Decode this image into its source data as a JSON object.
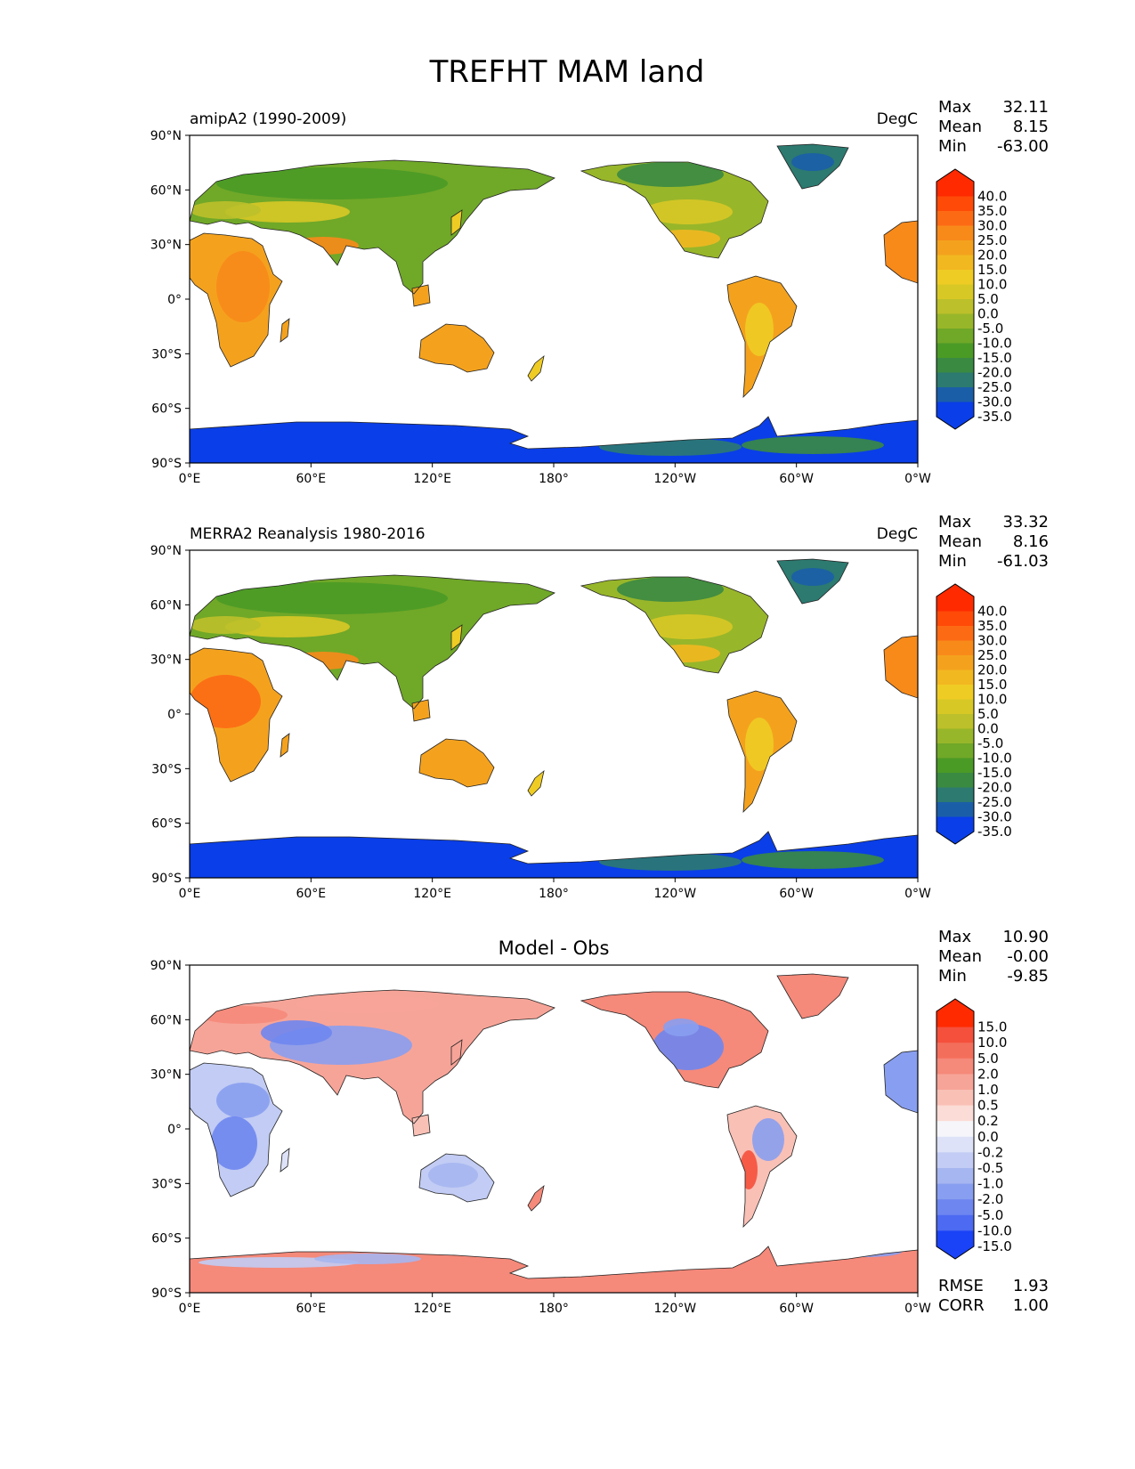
{
  "title": "TREFHT MAM land",
  "lat_ticks": [
    "90°N",
    "60°N",
    "30°N",
    "0°",
    "30°S",
    "60°S",
    "90°S"
  ],
  "lon_ticks": [
    "0°E",
    "60°E",
    "120°E",
    "180°",
    "120°W",
    "60°W",
    "0°W"
  ],
  "panels": [
    {
      "id": "model",
      "left_title": "amipA2 (1990-2009)",
      "center_title": "",
      "units": "DegC",
      "stats": [
        {
          "label": "Max",
          "value": "32.11"
        },
        {
          "label": "Mean",
          "value": "8.15"
        },
        {
          "label": "Min",
          "value": "-63.00"
        }
      ],
      "colorbar": {
        "labels": [
          "40.0",
          "35.0",
          "30.0",
          "25.0",
          "20.0",
          "15.0",
          "10.0",
          "5.0",
          "0.0",
          "-5.0",
          "-10.0",
          "-15.0",
          "-20.0",
          "-25.0",
          "-30.0",
          "-35.0"
        ],
        "colors": [
          "#ff2a00",
          "#ff4a08",
          "#fd6a14",
          "#f88a1a",
          "#f4a21e",
          "#f2b820",
          "#efcc24",
          "#d8c826",
          "#bcc02a",
          "#98b62a",
          "#70a828",
          "#4a9a26",
          "#3a8a42",
          "#2c7a70",
          "#1b5ea8",
          "#0a3ee8"
        ]
      },
      "footer_stats": []
    },
    {
      "id": "obs",
      "left_title": "MERRA2 Reanalysis 1980-2016",
      "center_title": "",
      "units": "DegC",
      "stats": [
        {
          "label": "Max",
          "value": "33.32"
        },
        {
          "label": "Mean",
          "value": "8.16"
        },
        {
          "label": "Min",
          "value": "-61.03"
        }
      ],
      "colorbar": {
        "labels": [
          "40.0",
          "35.0",
          "30.0",
          "25.0",
          "20.0",
          "15.0",
          "10.0",
          "5.0",
          "0.0",
          "-5.0",
          "-10.0",
          "-15.0",
          "-20.0",
          "-25.0",
          "-30.0",
          "-35.0"
        ],
        "colors": [
          "#ff2a00",
          "#ff4a08",
          "#fd6a14",
          "#f88a1a",
          "#f4a21e",
          "#f2b820",
          "#efcc24",
          "#d8c826",
          "#bcc02a",
          "#98b62a",
          "#70a828",
          "#4a9a26",
          "#3a8a42",
          "#2c7a70",
          "#1b5ea8",
          "#0a3ee8"
        ]
      },
      "footer_stats": []
    },
    {
      "id": "diff",
      "left_title": "",
      "center_title": "Model - Obs",
      "units": "",
      "stats": [
        {
          "label": "Max",
          "value": "10.90"
        },
        {
          "label": "Mean",
          "value": "-0.00"
        },
        {
          "label": "Min",
          "value": "-9.85"
        }
      ],
      "colorbar": {
        "labels": [
          "15.0",
          "10.0",
          "5.0",
          "2.0",
          "1.0",
          "0.5",
          "0.2",
          "0.0",
          "-0.2",
          "-0.5",
          "-1.0",
          "-2.0",
          "-5.0",
          "-10.0",
          "-15.0"
        ],
        "colors": [
          "#ff2a00",
          "#f5503c",
          "#f46e5c",
          "#f5897a",
          "#f7a498",
          "#f9c0b6",
          "#fbdcd6",
          "#f6f6fa",
          "#dde2f8",
          "#c2ccf4",
          "#a6b6f0",
          "#889ef0",
          "#6e86f0",
          "#4c6af2",
          "#1a42f6"
        ]
      },
      "footer_stats": [
        {
          "label": "RMSE",
          "value": "1.93"
        },
        {
          "label": "CORR",
          "value": "1.00"
        }
      ]
    }
  ]
}
